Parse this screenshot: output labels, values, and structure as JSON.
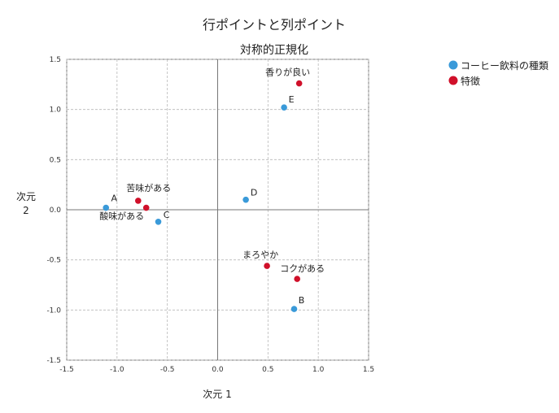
{
  "chart_data": {
    "type": "scatter",
    "title": "行ポイントと列ポイント",
    "subtitle": "対称的正規化",
    "xlabel": "次元 1",
    "ylabel_line1": "次元",
    "ylabel_line2": "2",
    "xlim": [
      -1.5,
      1.5
    ],
    "ylim": [
      -1.5,
      1.5
    ],
    "xticks": [
      "-1.5",
      "-1.0",
      "-0.5",
      "0.0",
      "0.5",
      "1.0",
      "1.5"
    ],
    "yticks": [
      "1.5",
      "1.0",
      "0.5",
      "0.0",
      "-0.5",
      "-1.0",
      "-1.5"
    ],
    "grid": true,
    "legend_position": "top-right",
    "series": [
      {
        "name": "コーヒー飲料の種類",
        "color": "#3a9ad9",
        "points": [
          {
            "label": "A",
            "x": -1.11,
            "y": 0.02
          },
          {
            "label": "B",
            "x": 0.76,
            "y": -0.99
          },
          {
            "label": "C",
            "x": -0.59,
            "y": -0.12
          },
          {
            "label": "D",
            "x": 0.28,
            "y": 0.1
          },
          {
            "label": "E",
            "x": 0.66,
            "y": 1.02
          }
        ]
      },
      {
        "name": "特徴",
        "color": "#d0102a",
        "points": [
          {
            "label": "香りが良い",
            "x": 0.81,
            "y": 1.26
          },
          {
            "label": "苦味がある",
            "x": -0.79,
            "y": 0.09
          },
          {
            "label": "酸味がある",
            "x": -0.71,
            "y": 0.02
          },
          {
            "label": "まろやか",
            "x": 0.49,
            "y": -0.56
          },
          {
            "label": "コクがある",
            "x": 0.79,
            "y": -0.69
          }
        ]
      }
    ]
  }
}
